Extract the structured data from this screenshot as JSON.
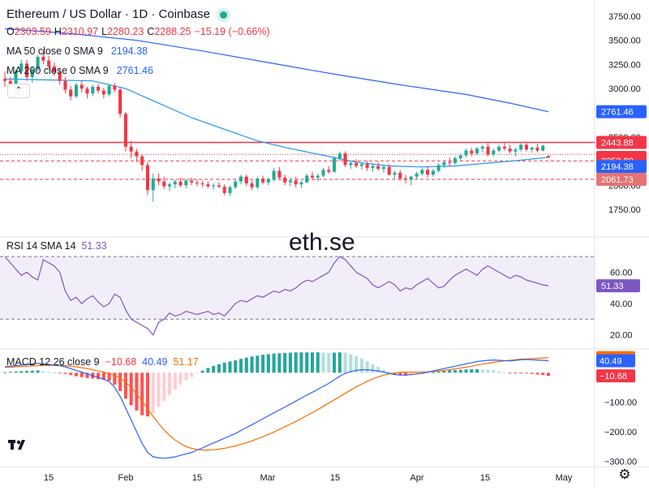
{
  "header": {
    "title": "Ethereum / US Dollar · 1D · Coinbase",
    "ohlc": [
      {
        "k": "O",
        "v": "2303.59"
      },
      {
        "k": "H",
        "v": "2310.97"
      },
      {
        "k": "L",
        "v": "2280.23"
      },
      {
        "k": "C",
        "v": "2288.25"
      },
      {
        "k": "",
        "v": "−15.19 (−0.66%)"
      }
    ],
    "ma50": {
      "label": "MA 50 close 0 SMA 9",
      "value": "2194.38",
      "color": "#2962ff"
    },
    "ma200": {
      "label": "MA 200 close 0 SMA 9",
      "value": "2761.46",
      "color": "#2962ff"
    },
    "collapse_icon": "chevron-up-icon"
  },
  "watermark": "eth.se",
  "rsi_header": {
    "label": "RSI 14 SMA 14",
    "value": "51.33",
    "color": "#7e57c2"
  },
  "macd_header": {
    "label": "MACD 12 26 close 9",
    "hist": "−10.68",
    "macd": "40.49",
    "signal": "51.17"
  },
  "colors": {
    "up": "#22ab94",
    "down": "#f23645",
    "ma50": "#2962ff",
    "ma200": "#2962ff",
    "rsi": "#7e57c2",
    "macd": "#2962ff",
    "signal": "#ff6d00"
  },
  "chart_data": [
    {
      "type": "candlestick",
      "name": "price",
      "title": "Ethereum / US Dollar · 1D · Coinbase",
      "ylim": [
        1600,
        3850
      ],
      "yticks": [
        "3750.00",
        "3500.00",
        "3250.00",
        "3000.00",
        "2750.00",
        "2500.00",
        "2250.00",
        "2000.00",
        "1750.00"
      ],
      "x_ticks": [
        "15",
        "Feb",
        "15",
        "Mar",
        "15",
        "Apr",
        "15",
        "May"
      ],
      "candles": [
        [
          3100,
          3180,
          3020,
          3080
        ],
        [
          3080,
          3120,
          3000,
          3050
        ],
        [
          3050,
          3200,
          3000,
          3180
        ],
        [
          3180,
          3300,
          3150,
          3260
        ],
        [
          3260,
          3300,
          3080,
          3120
        ],
        [
          3120,
          3230,
          3060,
          3200
        ],
        [
          3200,
          3350,
          3180,
          3330
        ],
        [
          3330,
          3400,
          3250,
          3290
        ],
        [
          3290,
          3340,
          3200,
          3230
        ],
        [
          3230,
          3270,
          3130,
          3170
        ],
        [
          3170,
          3200,
          3040,
          3080
        ],
        [
          3080,
          3120,
          2950,
          2990
        ],
        [
          2990,
          3030,
          2880,
          2920
        ],
        [
          2920,
          3060,
          2900,
          3040
        ],
        [
          3040,
          3080,
          2960,
          3000
        ],
        [
          3000,
          3020,
          2900,
          2950
        ],
        [
          2950,
          3040,
          2920,
          3020
        ],
        [
          3020,
          3050,
          2950,
          2980
        ],
        [
          2980,
          3010,
          2900,
          2940
        ],
        [
          2940,
          3050,
          2920,
          3030
        ],
        [
          3030,
          3060,
          2960,
          2990
        ],
        [
          2990,
          3020,
          2700,
          2740
        ],
        [
          2740,
          2760,
          2350,
          2400
        ],
        [
          2400,
          2460,
          2280,
          2350
        ],
        [
          2350,
          2380,
          2240,
          2300
        ],
        [
          2300,
          2320,
          2150,
          2210
        ],
        [
          2210,
          2240,
          1900,
          1950
        ],
        [
          1950,
          2120,
          1830,
          2070
        ],
        [
          2070,
          2120,
          2000,
          2040
        ],
        [
          2040,
          2090,
          1960,
          1990
        ],
        [
          1990,
          2030,
          1940,
          2010
        ],
        [
          2010,
          2060,
          1970,
          2040
        ],
        [
          2040,
          2080,
          1980,
          2000
        ],
        [
          2000,
          2070,
          1970,
          2050
        ],
        [
          2050,
          2080,
          2000,
          2030
        ],
        [
          2030,
          2060,
          1990,
          2020
        ],
        [
          2020,
          2050,
          1980,
          2010
        ],
        [
          2010,
          2040,
          1970,
          1990
        ],
        [
          1990,
          2020,
          1950,
          2000
        ],
        [
          2000,
          2030,
          1970,
          1985
        ],
        [
          1985,
          2010,
          1900,
          1920
        ],
        [
          1920,
          2000,
          1890,
          1980
        ],
        [
          1980,
          2060,
          1960,
          2040
        ],
        [
          2040,
          2110,
          2010,
          2090
        ],
        [
          2090,
          2110,
          1990,
          2020
        ],
        [
          2020,
          2050,
          1950,
          1980
        ],
        [
          1980,
          2090,
          1960,
          2070
        ],
        [
          2070,
          2100,
          2010,
          2030
        ],
        [
          2030,
          2080,
          2000,
          2060
        ],
        [
          2060,
          2180,
          2040,
          2150
        ],
        [
          2150,
          2190,
          2060,
          2080
        ],
        [
          2080,
          2110,
          2000,
          2030
        ],
        [
          2030,
          2080,
          1990,
          2050
        ],
        [
          2050,
          2090,
          1980,
          2010
        ],
        [
          2010,
          2050,
          1970,
          2030
        ],
        [
          2030,
          2120,
          2020,
          2100
        ],
        [
          2100,
          2140,
          2050,
          2080
        ],
        [
          2080,
          2120,
          2040,
          2100
        ],
        [
          2100,
          2180,
          2080,
          2160
        ],
        [
          2160,
          2200,
          2120,
          2140
        ],
        [
          2140,
          2300,
          2130,
          2280
        ],
        [
          2280,
          2350,
          2250,
          2330
        ],
        [
          2330,
          2350,
          2190,
          2210
        ],
        [
          2210,
          2250,
          2170,
          2230
        ],
        [
          2230,
          2270,
          2180,
          2200
        ],
        [
          2200,
          2240,
          2160,
          2220
        ],
        [
          2220,
          2250,
          2150,
          2180
        ],
        [
          2180,
          2230,
          2140,
          2200
        ],
        [
          2200,
          2240,
          2150,
          2170
        ],
        [
          2170,
          2210,
          2130,
          2190
        ],
        [
          2190,
          2220,
          2100,
          2110
        ],
        [
          2110,
          2150,
          2060,
          2130
        ],
        [
          2130,
          2160,
          2050,
          2070
        ],
        [
          2070,
          2110,
          2020,
          2060
        ],
        [
          2060,
          2100,
          2000,
          2090
        ],
        [
          2090,
          2140,
          2060,
          2120
        ],
        [
          2120,
          2180,
          2100,
          2160
        ],
        [
          2160,
          2200,
          2080,
          2110
        ],
        [
          2110,
          2170,
          2090,
          2150
        ],
        [
          2150,
          2230,
          2130,
          2210
        ],
        [
          2210,
          2260,
          2180,
          2240
        ],
        [
          2240,
          2290,
          2200,
          2230
        ],
        [
          2230,
          2300,
          2210,
          2280
        ],
        [
          2280,
          2330,
          2250,
          2310
        ],
        [
          2310,
          2380,
          2290,
          2360
        ],
        [
          2360,
          2390,
          2300,
          2330
        ],
        [
          2330,
          2400,
          2310,
          2380
        ],
        [
          2380,
          2420,
          2340,
          2400
        ],
        [
          2400,
          2440,
          2300,
          2320
        ],
        [
          2320,
          2380,
          2300,
          2360
        ],
        [
          2360,
          2420,
          2340,
          2400
        ],
        [
          2400,
          2450,
          2360,
          2380
        ],
        [
          2380,
          2420,
          2330,
          2350
        ],
        [
          2350,
          2390,
          2300,
          2370
        ],
        [
          2370,
          2440,
          2350,
          2420
        ],
        [
          2420,
          2440,
          2350,
          2370
        ],
        [
          2370,
          2400,
          2340,
          2390
        ],
        [
          2390,
          2430,
          2340,
          2360
        ],
        [
          2360,
          2420,
          2350,
          2410
        ],
        [
          2303.59,
          2310.97,
          2280.23,
          2288.25
        ]
      ],
      "ma50": [
        [
          0,
          3100
        ],
        [
          8,
          3090
        ],
        [
          16,
          3080
        ],
        [
          22,
          3000
        ],
        [
          28,
          2850
        ],
        [
          34,
          2700
        ],
        [
          40,
          2580
        ],
        [
          46,
          2460
        ],
        [
          52,
          2380
        ],
        [
          58,
          2310
        ],
        [
          64,
          2240
        ],
        [
          70,
          2200
        ],
        [
          76,
          2190
        ],
        [
          82,
          2200
        ],
        [
          88,
          2230
        ],
        [
          94,
          2260
        ],
        [
          99,
          2290
        ]
      ],
      "ma200": [
        [
          0,
          3620
        ],
        [
          12,
          3570
        ],
        [
          24,
          3500
        ],
        [
          36,
          3390
        ],
        [
          48,
          3270
        ],
        [
          60,
          3150
        ],
        [
          72,
          3040
        ],
        [
          84,
          2940
        ],
        [
          92,
          2850
        ],
        [
          99,
          2761.46
        ]
      ],
      "h_lines": [
        {
          "value": 2443.88,
          "style": "solid"
        },
        {
          "value": 2320,
          "style": "dotted"
        },
        {
          "value": 2252.8,
          "style": "dashed"
        },
        {
          "value": 2061.73,
          "style": "dashed"
        }
      ],
      "price_labels": [
        {
          "value": "2761.46",
          "color": "#2962ff"
        },
        {
          "value": "2443.88",
          "color": "#f23645"
        },
        {
          "value": "2288.25",
          "color": "#f23645"
        },
        {
          "value": "2252.80",
          "color": "#f23645"
        },
        {
          "value": "2194.38",
          "color": "#2962ff"
        },
        {
          "value": "2061.73",
          "color": "#e57373"
        }
      ]
    },
    {
      "type": "line",
      "name": "RSI",
      "ylim": [
        12,
        82
      ],
      "yticks": [
        "60.00",
        "40.00",
        "20.00"
      ],
      "band": [
        30,
        70
      ],
      "values": [
        70,
        66,
        62,
        58,
        60,
        57,
        55,
        68,
        66,
        64,
        60,
        48,
        42,
        44,
        40,
        43,
        45,
        41,
        38,
        40,
        46,
        44,
        36,
        30,
        28,
        26,
        24,
        20,
        28,
        30,
        34,
        32,
        33,
        35,
        34,
        33,
        34,
        35,
        33,
        34,
        32,
        36,
        40,
        42,
        41,
        43,
        45,
        44,
        46,
        48,
        47,
        49,
        48,
        50,
        53,
        55,
        54,
        56,
        58,
        60,
        66,
        70,
        68,
        64,
        60,
        58,
        56,
        52,
        50,
        52,
        54,
        52,
        48,
        50,
        49,
        52,
        54,
        56,
        53,
        50,
        51,
        55,
        58,
        60,
        62,
        60,
        58,
        62,
        64,
        62,
        60,
        58,
        56,
        58,
        57,
        55,
        54,
        53,
        52,
        51.33
      ]
    },
    {
      "type": "bar+line",
      "name": "MACD",
      "ylim": [
        -310,
        75
      ],
      "yticks": [
        "0.00",
        "−100.00",
        "−200.00",
        "−300.00"
      ],
      "macd": [
        20,
        22,
        24,
        26,
        28,
        30,
        32,
        30,
        28,
        26,
        24,
        20,
        14,
        8,
        2,
        -4,
        -10,
        -16,
        -22,
        -30,
        -50,
        -80,
        -120,
        -160,
        -200,
        -240,
        -270,
        -285,
        -288,
        -290,
        -288,
        -285,
        -280,
        -275,
        -270,
        -262,
        -255,
        -246,
        -238,
        -230,
        -222,
        -214,
        -206,
        -196,
        -186,
        -176,
        -166,
        -156,
        -146,
        -136,
        -126,
        -116,
        -106,
        -96,
        -86,
        -76,
        -66,
        -56,
        -46,
        -36,
        -24,
        -12,
        -2,
        4,
        8,
        10,
        10,
        8,
        6,
        2,
        -2,
        -6,
        -8,
        -8,
        -6,
        -4,
        -2,
        2,
        6,
        10,
        14,
        18,
        22,
        26,
        30,
        34,
        38,
        40,
        42,
        43,
        42,
        41,
        40,
        42,
        44,
        45,
        44,
        43,
        42,
        40.49
      ],
      "signal": [
        18,
        19,
        20,
        21,
        22,
        23,
        24,
        25,
        25,
        25,
        25,
        24,
        22,
        20,
        17,
        14,
        10,
        6,
        2,
        -3,
        -9,
        -18,
        -32,
        -50,
        -72,
        -96,
        -122,
        -148,
        -172,
        -194,
        -212,
        -228,
        -240,
        -250,
        -256,
        -260,
        -262,
        -262,
        -261,
        -259,
        -256,
        -252,
        -248,
        -243,
        -237,
        -231,
        -224,
        -217,
        -209,
        -201,
        -192,
        -183,
        -174,
        -165,
        -155,
        -145,
        -135,
        -125,
        -114,
        -103,
        -92,
        -81,
        -70,
        -59,
        -48,
        -38,
        -29,
        -21,
        -14,
        -8,
        -4,
        -1,
        1,
        2,
        2,
        2,
        2,
        3,
        4,
        6,
        8,
        10,
        13,
        16,
        19,
        22,
        26,
        29,
        32,
        35,
        38,
        40,
        42,
        44,
        46,
        47,
        48,
        49,
        50,
        51.17
      ]
    }
  ]
}
